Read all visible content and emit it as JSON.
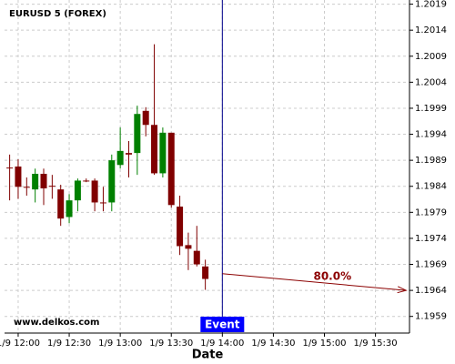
{
  "chart_data": {
    "type": "candlestick",
    "title": "EURUSD 5 (FOREX)",
    "source": "www.delkos.com",
    "x_label": "Date",
    "x": [
      715,
      720,
      725,
      730,
      735,
      740,
      745,
      750,
      755,
      760,
      765,
      770,
      775,
      780,
      785,
      790,
      795,
      800,
      805,
      810,
      815,
      820,
      825,
      830
    ],
    "open": [
      1.19876,
      1.19878,
      1.19839,
      1.19834,
      1.19864,
      1.19841,
      1.19834,
      1.19781,
      1.19813,
      1.19851,
      1.19851,
      1.19809,
      1.19809,
      1.19881,
      1.19904,
      1.19904,
      1.19985,
      1.19958,
      1.19865,
      1.19943,
      1.19801,
      1.19727,
      1.19716,
      1.19686
    ],
    "high": [
      1.19901,
      1.19892,
      1.19857,
      1.19874,
      1.19874,
      1.19862,
      1.19843,
      1.19825,
      1.19855,
      1.19855,
      1.19855,
      1.19839,
      1.19901,
      1.19953,
      1.19927,
      1.19995,
      1.19992,
      1.20113,
      1.19953,
      1.19943,
      1.19822,
      1.19751,
      1.19764,
      1.19699
    ],
    "low": [
      1.19813,
      1.19816,
      1.19822,
      1.19809,
      1.19804,
      1.19816,
      1.19764,
      1.19769,
      1.19792,
      1.19848,
      1.19792,
      1.19792,
      1.19792,
      1.19874,
      1.19857,
      1.19862,
      1.19936,
      1.19862,
      1.19857,
      1.19799,
      1.19708,
      1.19679,
      1.19686,
      1.19641
    ],
    "close": [
      1.19875,
      1.19839,
      1.19838,
      1.19864,
      1.19836,
      1.1984,
      1.19778,
      1.19813,
      1.19851,
      1.1985,
      1.19809,
      1.19808,
      1.1989,
      1.19908,
      1.19901,
      1.19979,
      1.19958,
      1.19865,
      1.19943,
      1.19804,
      1.19725,
      1.1972,
      1.1969,
      1.19662
    ],
    "up_color": "#008000",
    "down_color": "#800000",
    "xlim": [
      712,
      950
    ],
    "xticks": [
      {
        "value": 720,
        "label": "1/9 12:00"
      },
      {
        "value": 750,
        "label": "1/9 12:30"
      },
      {
        "value": 780,
        "label": "1/9 13:00"
      },
      {
        "value": 810,
        "label": "1/9 13:30"
      },
      {
        "value": 840,
        "label": "1/9 14:00"
      },
      {
        "value": 870,
        "label": "1/9 14:30"
      },
      {
        "value": 900,
        "label": "1/9 15:00"
      },
      {
        "value": 930,
        "label": "1/9 15:30"
      }
    ],
    "ylim": [
      1.19558,
      1.20198
    ],
    "yticks": [
      1.2019,
      1.2014,
      1.2009,
      1.2004,
      1.1999,
      1.1994,
      1.1989,
      1.1984,
      1.1979,
      1.1974,
      1.1969,
      1.1964,
      1.1959
    ],
    "grid": true,
    "event": {
      "label": "Event",
      "x": 840,
      "color": "#00008b"
    },
    "forecast": {
      "label": "80.0%",
      "x": [
        840,
        948
      ],
      "y": [
        1.19672,
        1.1964
      ],
      "color": "#8b0000"
    }
  }
}
